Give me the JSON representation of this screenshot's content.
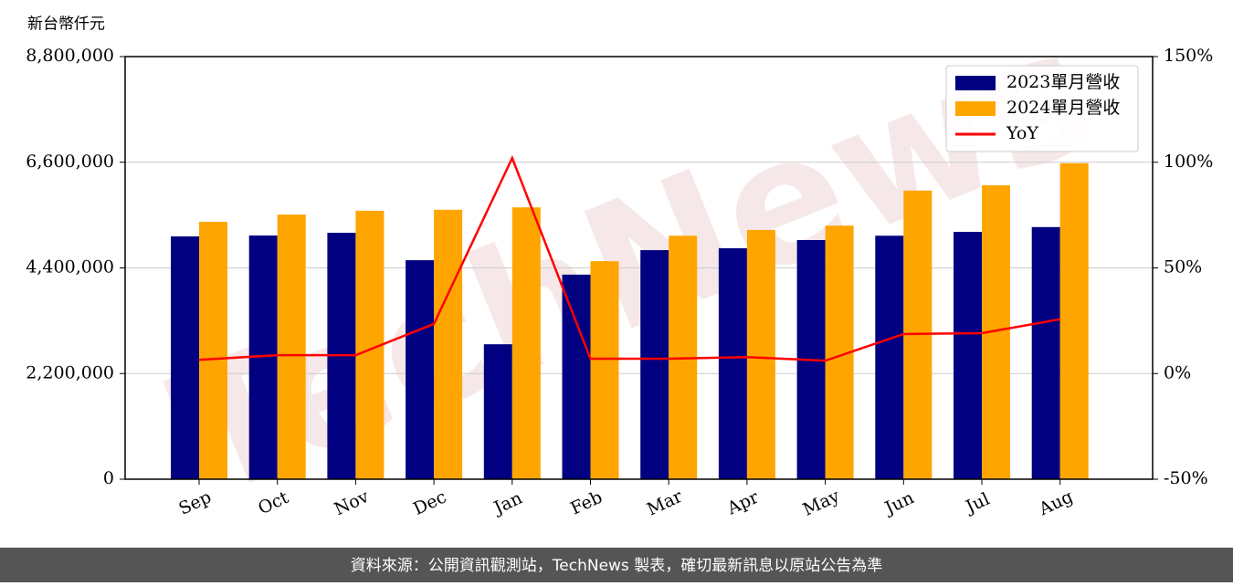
{
  "chart_data": {
    "type": "bar-line",
    "y_label": "新台幣仟元",
    "watermark": "TechNews",
    "footer": "資料來源：公開資訊觀測站，TechNews 製表，確切最新訊息以原站公告為準",
    "categories": [
      "Sep",
      "Oct",
      "Nov",
      "Dec",
      "Jan",
      "Feb",
      "Mar",
      "Apr",
      "May",
      "Jun",
      "Jul",
      "Aug"
    ],
    "series": [
      {
        "name": "2023單月營收",
        "type": "bar",
        "color": "#000080",
        "values": [
          5056000,
          5075000,
          5130000,
          4560000,
          2810000,
          4260000,
          4770000,
          4810000,
          4980000,
          5070000,
          5150000,
          5250000
        ]
      },
      {
        "name": "2024單月營收",
        "type": "bar",
        "color": "#ffa500",
        "values": [
          5360000,
          5510000,
          5590000,
          5610000,
          5660000,
          4540000,
          5070000,
          5190000,
          5280000,
          6010000,
          6120000,
          6580000
        ]
      },
      {
        "name": "YoY",
        "type": "line",
        "axis": "y2",
        "color": "#ff0000",
        "values": [
          6.5,
          8.7,
          8.7,
          23.5,
          102,
          7,
          7,
          7.8,
          6.1,
          18.7,
          19.1,
          25.7
        ]
      }
    ],
    "ylim": [
      0,
      8800000
    ],
    "yticks": [
      0,
      {
        "value": 2200000,
        "label": "2,200,000"
      },
      {
        "value": 4400000,
        "label": "4,400,000"
      },
      {
        "value": 6600000,
        "label": "6,600,000"
      },
      {
        "value": 8800000,
        "label": "8,800,000"
      }
    ],
    "y2lim": [
      -50,
      150
    ],
    "y2ticks": [
      {
        "value": -50,
        "label": "-50%"
      },
      {
        "value": 0,
        "label": "0%"
      },
      {
        "value": 50,
        "label": "50%"
      },
      {
        "value": 100,
        "label": "100%"
      },
      {
        "value": 150,
        "label": "150%"
      }
    ],
    "grid": true,
    "legend": "upper right"
  }
}
